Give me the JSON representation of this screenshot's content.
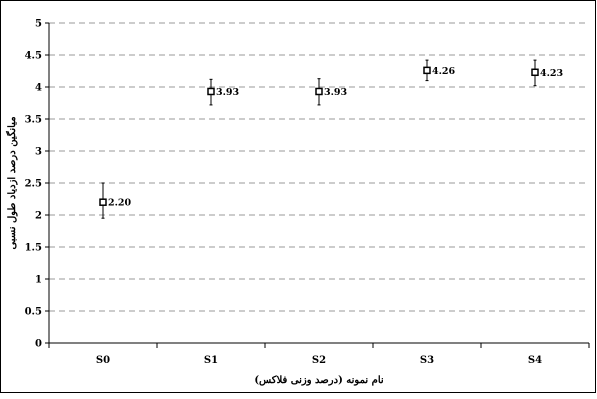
{
  "chart_data": {
    "type": "scatter",
    "title": "",
    "xlabel": "نام نمونه (درصد وزنی فلاکس)",
    "ylabel": "میانگین درصد ازدیاد طول نسبی",
    "categories": [
      "S0",
      "S1",
      "S2",
      "S3",
      "S4"
    ],
    "series": [
      {
        "values": [
          2.2,
          3.93,
          3.93,
          4.26,
          4.23
        ],
        "labels": [
          "2.20",
          "3.93",
          "3.93",
          "4.26",
          "4.23"
        ],
        "error_low": [
          1.95,
          3.72,
          3.72,
          4.1,
          4.02
        ],
        "error_high": [
          2.5,
          4.12,
          4.13,
          4.42,
          4.42
        ]
      }
    ],
    "ylim": [
      0,
      5
    ],
    "yticks": [
      "0",
      "0.5",
      "1",
      "1.5",
      "2",
      "2.5",
      "3",
      "3.5",
      "4",
      "4.5",
      "5"
    ],
    "ytick_values": [
      0,
      0.5,
      1,
      1.5,
      2,
      2.5,
      3,
      3.5,
      4,
      4.5,
      5
    ],
    "grid": true,
    "marker": "square",
    "colors": {
      "ink": "#000000",
      "grid": "#9a9a9a",
      "background": "#ffffff"
    }
  }
}
